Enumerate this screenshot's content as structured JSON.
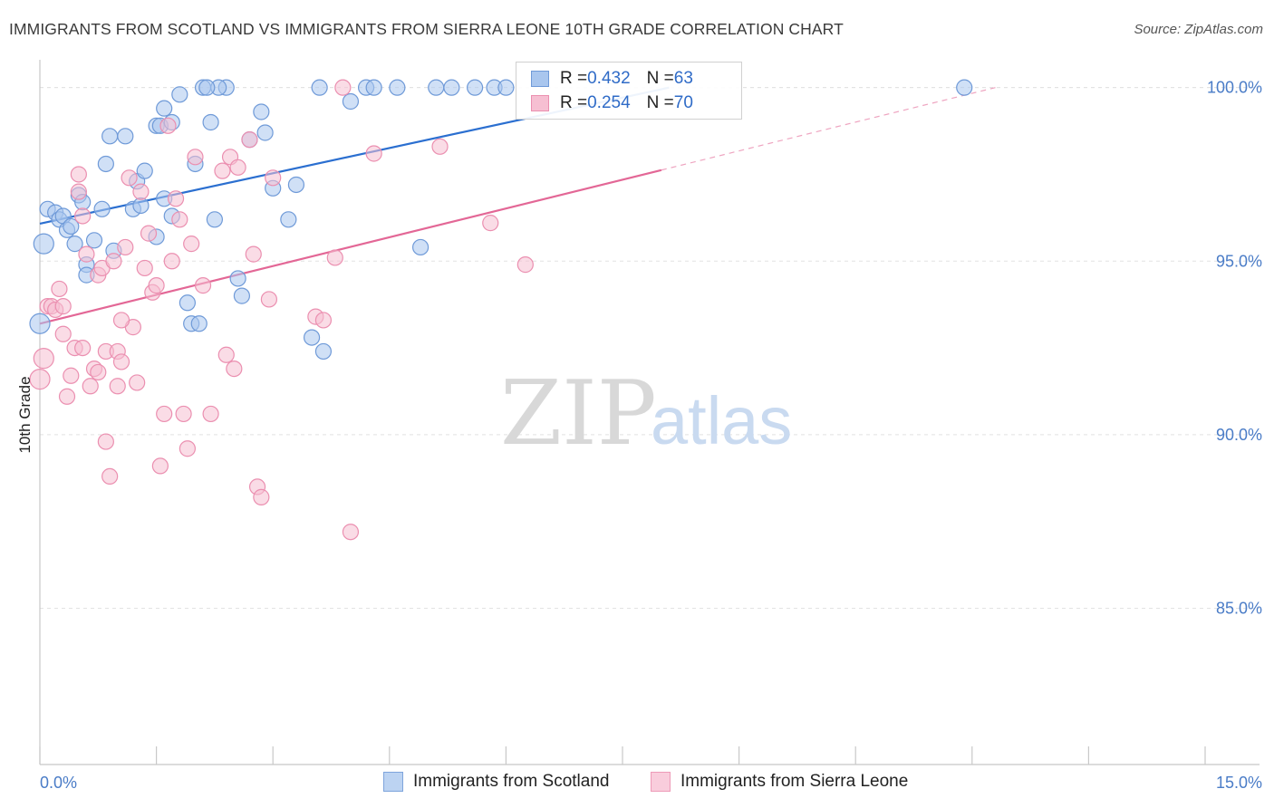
{
  "header": {
    "title": "IMMIGRANTS FROM SCOTLAND VS IMMIGRANTS FROM SIERRA LEONE 10TH GRADE CORRELATION CHART",
    "source": "Source: ZipAtlas.com"
  },
  "watermark": {
    "zip": "ZIP",
    "atlas": "atlas"
  },
  "legend": {
    "scotland": {
      "r_label": "R = ",
      "r_value": "0.432",
      "n_label": "N = ",
      "n_value": "63"
    },
    "sierra_leone": {
      "r_label": "R = ",
      "r_value": "0.254",
      "n_label": "N = ",
      "n_value": "70"
    }
  },
  "colors": {
    "scotland_fill": "#a9c6ee",
    "scotland_stroke": "#6f9ad8",
    "scotland_line": "#2b6fd0",
    "sierra_fill": "#f6bfd2",
    "sierra_stroke": "#eb8fb0",
    "sierra_line": "#e36796",
    "tick_text": "#4a7cc7",
    "grid": "#e2e2e2"
  },
  "chart_data": {
    "type": "scatter",
    "title": "IMMIGRANTS FROM SCOTLAND VS IMMIGRANTS FROM SIERRA LEONE 10TH GRADE CORRELATION CHART",
    "xlabel": "",
    "ylabel": "10th Grade",
    "xlim": [
      0,
      15
    ],
    "ylim": [
      80.5,
      100.8
    ],
    "x_tick_labels": [
      "0.0%",
      "15.0%"
    ],
    "y_ticks": [
      85,
      90,
      95,
      100
    ],
    "y_tick_labels": [
      "85.0%",
      "90.0%",
      "95.0%",
      "100.0%"
    ],
    "x_minor_ticks": [
      0,
      1.5,
      3,
      4.5,
      6,
      7.5,
      9,
      10.5,
      12,
      13.5,
      15
    ],
    "grid": true,
    "series": [
      {
        "name": "Immigrants from Scotland",
        "R": 0.432,
        "N": 63,
        "trend": {
          "x0": 0,
          "y0": 96.08,
          "x1": 8.1,
          "y1": 100.0,
          "solid_until": 8.1
        },
        "points": [
          [
            0.1,
            96.5
          ],
          [
            0.2,
            96.4
          ],
          [
            0.25,
            96.2
          ],
          [
            0.3,
            96.3
          ],
          [
            0.35,
            95.9
          ],
          [
            0.4,
            96.0
          ],
          [
            0.5,
            96.9
          ],
          [
            0.55,
            96.7
          ],
          [
            0.6,
            94.9
          ],
          [
            0.7,
            95.6
          ],
          [
            0.8,
            96.5
          ],
          [
            0.85,
            97.8
          ],
          [
            0.9,
            98.6
          ],
          [
            0.95,
            95.3
          ],
          [
            1.1,
            98.6
          ],
          [
            1.2,
            96.5
          ],
          [
            1.25,
            97.3
          ],
          [
            1.3,
            96.6
          ],
          [
            1.35,
            97.6
          ],
          [
            1.5,
            95.7
          ],
          [
            1.6,
            99.4
          ],
          [
            1.5,
            98.9
          ],
          [
            1.55,
            98.9
          ],
          [
            1.6,
            96.8
          ],
          [
            1.7,
            96.3
          ],
          [
            1.7,
            99.0
          ],
          [
            1.8,
            99.8
          ],
          [
            1.9,
            93.8
          ],
          [
            1.95,
            93.2
          ],
          [
            2.05,
            93.2
          ],
          [
            2.2,
            99.0
          ],
          [
            2.0,
            97.8
          ],
          [
            2.25,
            96.2
          ],
          [
            2.4,
            100.0
          ],
          [
            2.55,
            94.5
          ],
          [
            2.6,
            94.0
          ],
          [
            2.7,
            98.5
          ],
          [
            2.85,
            99.3
          ],
          [
            2.9,
            98.7
          ],
          [
            3.0,
            97.1
          ],
          [
            3.2,
            96.2
          ],
          [
            3.3,
            97.2
          ],
          [
            3.5,
            92.8
          ],
          [
            3.6,
            100.0
          ],
          [
            3.65,
            92.4
          ],
          [
            4.0,
            99.6
          ],
          [
            4.2,
            100.0
          ],
          [
            4.3,
            100.0
          ],
          [
            4.9,
            95.4
          ],
          [
            5.1,
            100.0
          ],
          [
            5.6,
            100.0
          ],
          [
            5.85,
            100.0
          ],
          [
            6.0,
            100.0
          ],
          [
            11.9,
            100.0
          ],
          [
            0.05,
            95.5
          ],
          [
            0.0,
            93.2
          ],
          [
            0.6,
            94.6
          ],
          [
            0.45,
            95.5
          ],
          [
            2.1,
            100.0
          ],
          [
            2.3,
            100.0
          ],
          [
            2.15,
            100.0
          ],
          [
            4.6,
            100.0
          ],
          [
            5.3,
            100.0
          ]
        ]
      },
      {
        "name": "Immigrants from Sierra Leone",
        "R": 0.254,
        "N": 70,
        "trend": {
          "x0": 0,
          "y0": 93.2,
          "x1": 12.3,
          "y1": 100.0,
          "solid_until": 8.0
        },
        "points": [
          [
            0.0,
            91.6
          ],
          [
            0.05,
            92.2
          ],
          [
            0.1,
            93.7
          ],
          [
            0.15,
            93.7
          ],
          [
            0.2,
            93.6
          ],
          [
            0.25,
            94.2
          ],
          [
            0.3,
            92.9
          ],
          [
            0.35,
            91.1
          ],
          [
            0.4,
            91.7
          ],
          [
            0.45,
            92.5
          ],
          [
            0.5,
            97.5
          ],
          [
            0.5,
            97.0
          ],
          [
            0.55,
            96.3
          ],
          [
            0.6,
            95.2
          ],
          [
            0.65,
            91.4
          ],
          [
            0.7,
            91.9
          ],
          [
            0.75,
            94.6
          ],
          [
            0.8,
            94.8
          ],
          [
            0.85,
            92.4
          ],
          [
            0.85,
            89.8
          ],
          [
            0.9,
            88.8
          ],
          [
            0.95,
            95.0
          ],
          [
            1.0,
            91.4
          ],
          [
            1.0,
            92.4
          ],
          [
            1.05,
            92.1
          ],
          [
            1.1,
            95.4
          ],
          [
            1.15,
            97.4
          ],
          [
            1.2,
            93.1
          ],
          [
            1.25,
            91.5
          ],
          [
            1.3,
            97.0
          ],
          [
            1.35,
            94.8
          ],
          [
            1.4,
            95.8
          ],
          [
            1.45,
            94.1
          ],
          [
            1.5,
            94.3
          ],
          [
            1.55,
            89.1
          ],
          [
            1.6,
            90.6
          ],
          [
            1.65,
            98.9
          ],
          [
            1.7,
            95.0
          ],
          [
            1.75,
            96.8
          ],
          [
            1.8,
            96.2
          ],
          [
            1.85,
            90.6
          ],
          [
            1.9,
            89.6
          ],
          [
            1.95,
            95.5
          ],
          [
            2.0,
            98.0
          ],
          [
            2.1,
            94.3
          ],
          [
            2.2,
            90.6
          ],
          [
            2.35,
            97.6
          ],
          [
            2.4,
            92.3
          ],
          [
            2.45,
            98.0
          ],
          [
            2.5,
            91.9
          ],
          [
            2.55,
            97.7
          ],
          [
            2.7,
            98.5
          ],
          [
            2.75,
            95.2
          ],
          [
            2.8,
            88.5
          ],
          [
            2.85,
            88.2
          ],
          [
            2.95,
            93.9
          ],
          [
            3.0,
            97.4
          ],
          [
            3.55,
            93.4
          ],
          [
            3.65,
            93.3
          ],
          [
            3.8,
            95.1
          ],
          [
            3.9,
            100.0
          ],
          [
            4.0,
            87.2
          ],
          [
            4.3,
            98.1
          ],
          [
            5.15,
            98.3
          ],
          [
            5.8,
            96.1
          ],
          [
            6.25,
            94.9
          ],
          [
            0.3,
            93.7
          ],
          [
            0.55,
            92.5
          ],
          [
            1.05,
            93.3
          ],
          [
            0.75,
            91.8
          ]
        ]
      }
    ]
  },
  "bottom_legend": {
    "scotland_label": "Immigrants from Scotland",
    "sierra_label": "Immigrants from Sierra Leone"
  }
}
